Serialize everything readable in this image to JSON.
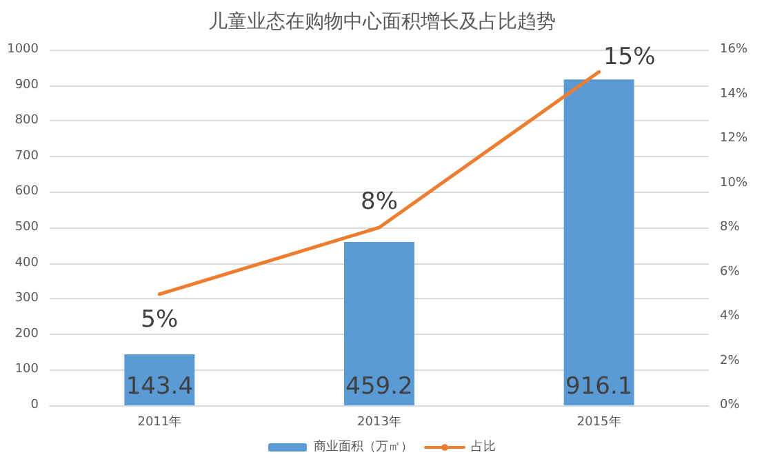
{
  "chart_data": {
    "type": "bar",
    "title": "儿童业态在购物中心面积增长及占比趋势",
    "categories": [
      "2011年",
      "2013年",
      "2015年"
    ],
    "series": [
      {
        "name": "商业面积（万㎡）",
        "color": "#5b9bd5",
        "values": [
          143.4,
          459.2,
          916.1
        ],
        "value_labels": [
          "143.4",
          "459.2",
          "916.1"
        ]
      },
      {
        "name": "占比",
        "type": "line",
        "axis": "y2",
        "color": "#ed7d31",
        "values": [
          5,
          8,
          15
        ],
        "value_labels": [
          "5%",
          "8%",
          "15%"
        ]
      }
    ],
    "ylim": [
      0,
      1000
    ],
    "yticks": [
      0,
      100,
      200,
      300,
      400,
      500,
      600,
      700,
      800,
      900,
      1000
    ],
    "y2lim": [
      0,
      16
    ],
    "y2ticks": [
      {
        "value": 0,
        "label": "0%"
      },
      {
        "value": 2,
        "label": "2%"
      },
      {
        "value": 4,
        "label": "4%"
      },
      {
        "value": 6,
        "label": "6%"
      },
      {
        "value": 8,
        "label": "8%"
      },
      {
        "value": 10,
        "label": "10%"
      },
      {
        "value": 12,
        "label": "12%"
      },
      {
        "value": 14,
        "label": "14%"
      },
      {
        "value": 16,
        "label": "16%"
      }
    ],
    "grid": "y",
    "legend": "bottom",
    "marker": "none",
    "line_style": "solid"
  }
}
